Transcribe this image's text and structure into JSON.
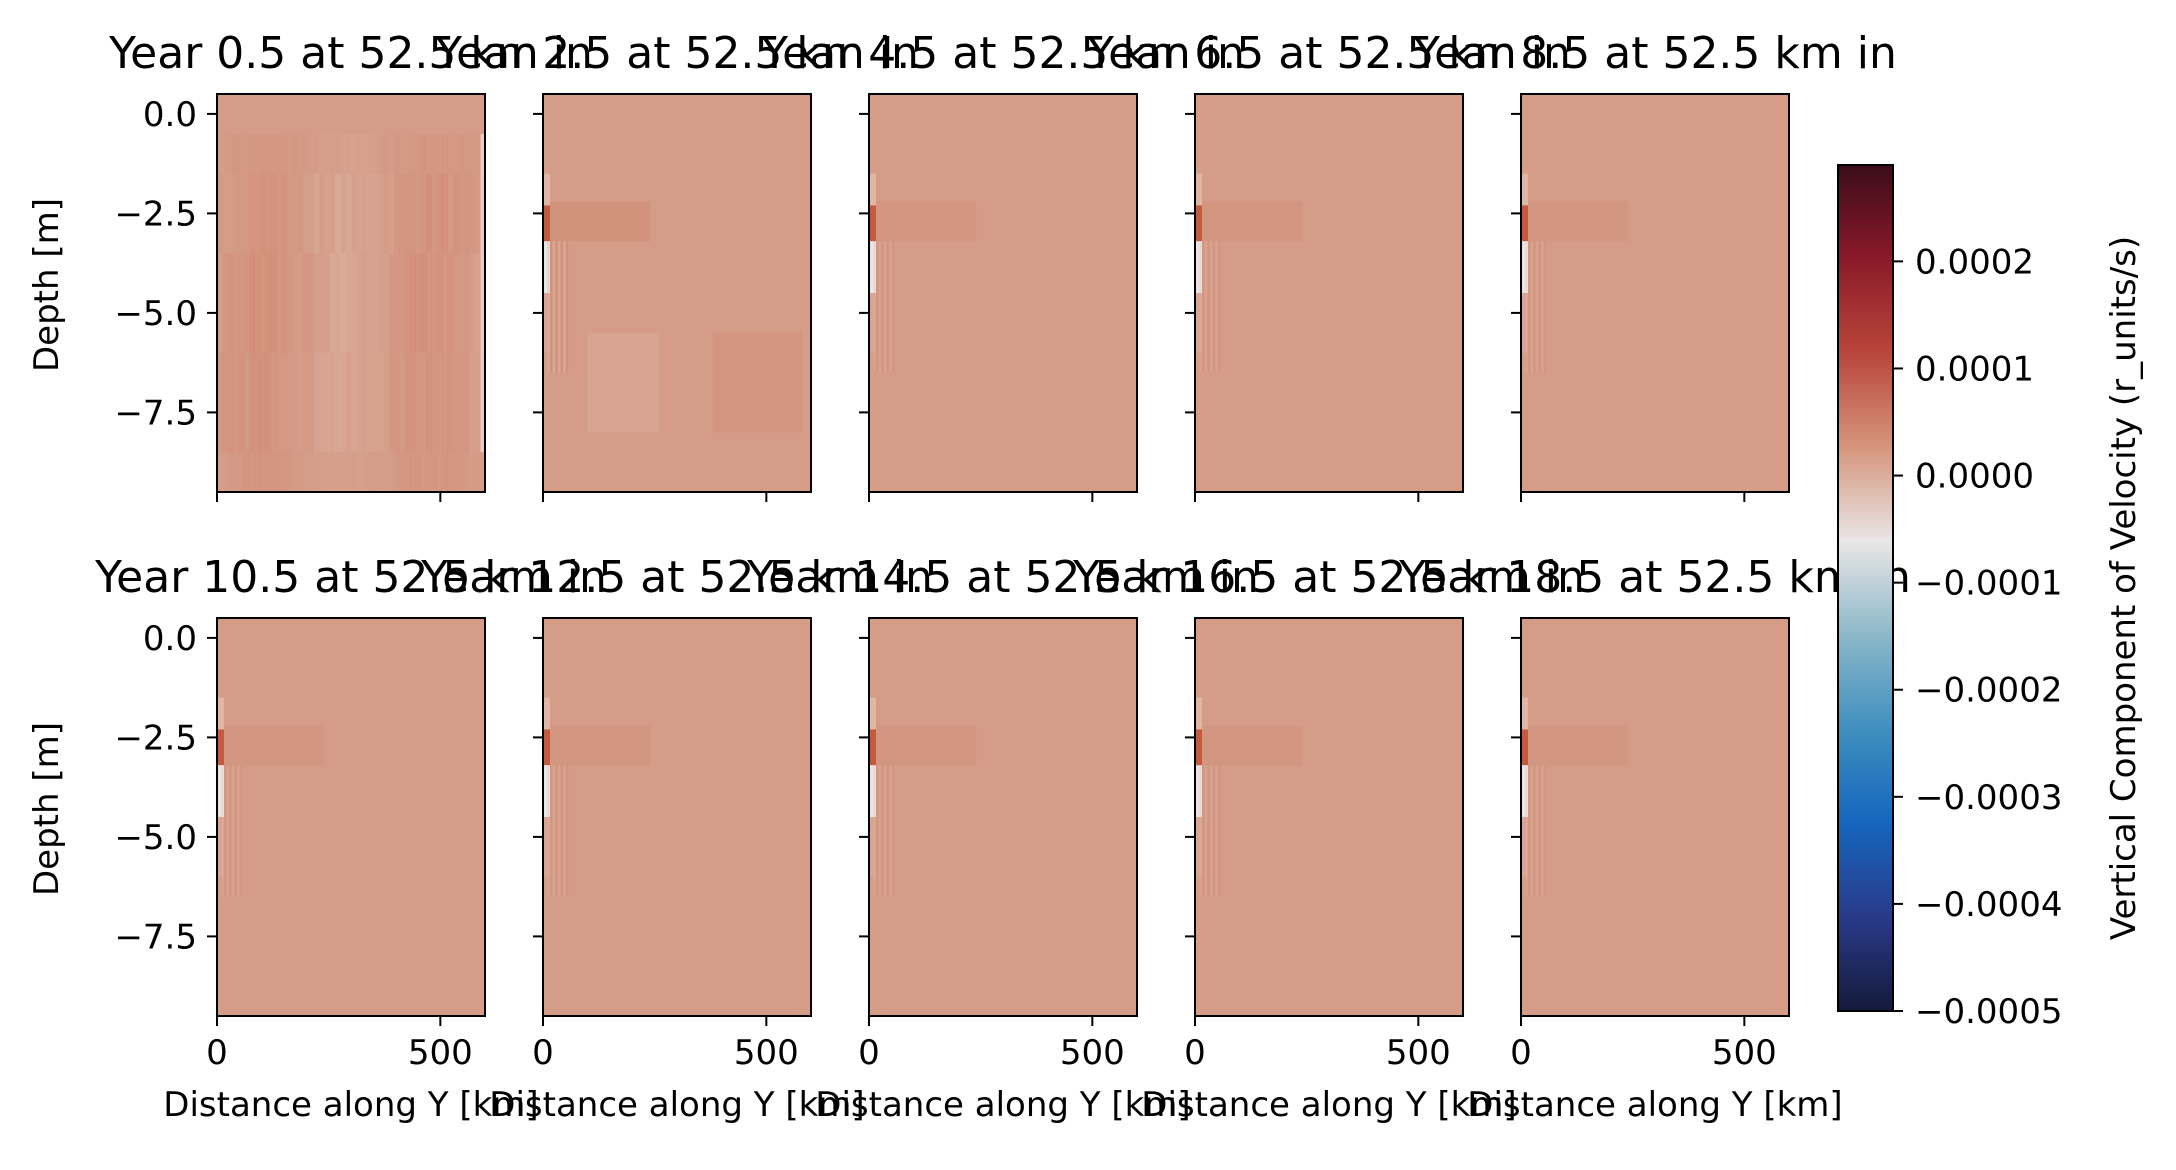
{
  "chart_data": {
    "type": "heatmap",
    "panels": [
      {
        "title": "Year 0.5 at 52.5 km in",
        "xlim": [
          0,
          600
        ],
        "ylim": [
          -9.5,
          0.5
        ],
        "xticks": [],
        "yticks": [
          0.0,
          -2.5,
          -5.0,
          -7.5
        ],
        "ytick_labels": [
          "0.0",
          "−2.5",
          "−5.0",
          "−7.5"
        ],
        "ylabel": "Depth [m]",
        "xlabel": "",
        "pattern": "strong"
      },
      {
        "title": "Year 2.5 at 52.5 km in",
        "xlim": [
          0,
          600
        ],
        "ylim": [
          -9.5,
          0.5
        ],
        "xticks": [],
        "yticks": [],
        "ytick_labels": [],
        "ylabel": "",
        "xlabel": "",
        "pattern": "medium"
      },
      {
        "title": "Year 4.5 at 52.5 km in",
        "xlim": [
          0,
          600
        ],
        "ylim": [
          -9.5,
          0.5
        ],
        "xticks": [],
        "yticks": [],
        "ytick_labels": [],
        "ylabel": "",
        "xlabel": "",
        "pattern": "weak"
      },
      {
        "title": "Year 6.5 at 52.5 km in",
        "xlim": [
          0,
          600
        ],
        "ylim": [
          -9.5,
          0.5
        ],
        "xticks": [],
        "yticks": [],
        "ytick_labels": [],
        "ylabel": "",
        "xlabel": "",
        "pattern": "weak"
      },
      {
        "title": "Year 8.5 at 52.5 km in",
        "xlim": [
          0,
          600
        ],
        "ylim": [
          -9.5,
          0.5
        ],
        "xticks": [],
        "yticks": [],
        "ytick_labels": [],
        "ylabel": "",
        "xlabel": "",
        "pattern": "weak"
      },
      {
        "title": "Year 10.5 at 52.5 km in",
        "xlim": [
          0,
          600
        ],
        "ylim": [
          -9.5,
          0.5
        ],
        "xticks": [
          0,
          500
        ],
        "xtick_labels": [
          "0",
          "500"
        ],
        "yticks": [
          0.0,
          -2.5,
          -5.0,
          -7.5
        ],
        "ytick_labels": [
          "0.0",
          "−2.5",
          "−5.0",
          "−7.5"
        ],
        "ylabel": "Depth [m]",
        "xlabel": "Distance along Y [km]",
        "pattern": "weak"
      },
      {
        "title": "Year 12.5 at 52.5 km in",
        "xlim": [
          0,
          600
        ],
        "ylim": [
          -9.5,
          0.5
        ],
        "xticks": [
          0,
          500
        ],
        "xtick_labels": [
          "0",
          "500"
        ],
        "yticks": [],
        "ytick_labels": [],
        "ylabel": "",
        "xlabel": "Distance along Y [km]",
        "pattern": "weak"
      },
      {
        "title": "Year 14.5 at 52.5 km in",
        "xlim": [
          0,
          600
        ],
        "ylim": [
          -9.5,
          0.5
        ],
        "xticks": [
          0,
          500
        ],
        "xtick_labels": [
          "0",
          "500"
        ],
        "yticks": [],
        "ytick_labels": [],
        "ylabel": "",
        "xlabel": "Distance along Y [km]",
        "pattern": "weak"
      },
      {
        "title": "Year 16.5 at 52.5 km in",
        "xlim": [
          0,
          600
        ],
        "ylim": [
          -9.5,
          0.5
        ],
        "xticks": [
          0,
          500
        ],
        "xtick_labels": [
          "0",
          "500"
        ],
        "yticks": [],
        "ytick_labels": [],
        "ylabel": "",
        "xlabel": "Distance along Y [km]",
        "pattern": "weak"
      },
      {
        "title": "Year 18.5 at 52.5 km in",
        "xlim": [
          0,
          600
        ],
        "ylim": [
          -9.5,
          0.5
        ],
        "xticks": [
          0,
          500
        ],
        "xtick_labels": [
          "0",
          "500"
        ],
        "yticks": [],
        "ytick_labels": [],
        "ylabel": "",
        "xlabel": "Distance along Y [km]",
        "pattern": "weak"
      }
    ],
    "colorbar": {
      "label": "Vertical Component of Velocity (r_units/s)",
      "range": [
        -0.0005,
        0.00029
      ],
      "ticks": [
        0.0002,
        0.0001,
        0.0,
        -0.0001,
        -0.0002,
        -0.0003,
        -0.0004,
        -0.0005
      ],
      "tick_labels": [
        "0.0002",
        "0.0001",
        "0.0000",
        "−0.0001",
        "−0.0002",
        "−0.0003",
        "−0.0004",
        "−0.0005"
      ],
      "colormap": "balance",
      "colors": [
        "#131a3a",
        "#2a3a8a",
        "#1566bd",
        "#3f8fbf",
        "#8cb8c9",
        "#e9e6e6",
        "#d6957c",
        "#b8463a",
        "#8b1a2a",
        "#3b0c19"
      ]
    },
    "field_base_color": "#d59c87"
  }
}
